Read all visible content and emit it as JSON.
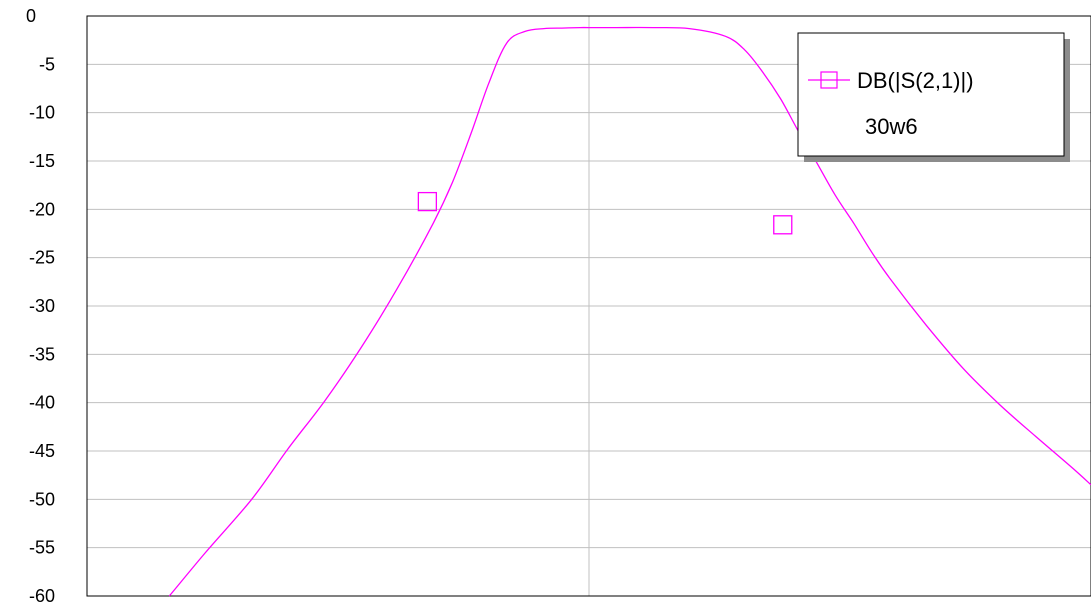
{
  "chart_data": {
    "type": "line",
    "title": "",
    "xlabel": "",
    "ylabel": "",
    "xlim": [
      0,
      100
    ],
    "ylim": [
      -60,
      0
    ],
    "yticks": [
      0,
      -5,
      -10,
      -15,
      -20,
      -25,
      -30,
      -35,
      -40,
      -45,
      -50,
      -55,
      -60
    ],
    "grid": true,
    "legend_position": "top-right",
    "series": [
      {
        "name": "DB(|S(2,1)|)",
        "sublabel": "30w6",
        "color": "#ff00ff",
        "x": [
          8.2,
          11.8,
          16.4,
          20.0,
          23.7,
          27.3,
          30.9,
          34.5,
          36.4,
          38.2,
          40.0,
          41.8,
          43.6,
          45.5,
          47.3,
          49.1,
          50.0,
          52.7,
          56.4,
          60.0,
          63.6,
          65.5,
          67.3,
          69.1,
          70.9,
          72.7,
          74.5,
          76.4,
          78.2,
          80.0,
          83.6,
          87.3,
          90.9,
          94.5,
          98.2,
          100.0
        ],
        "y": [
          -60.0,
          -55.5,
          -50.0,
          -44.8,
          -39.8,
          -34.3,
          -28.2,
          -21.4,
          -17.2,
          -12.3,
          -7.0,
          -2.8,
          -1.6,
          -1.3,
          -1.25,
          -1.2,
          -1.2,
          -1.2,
          -1.2,
          -1.3,
          -2.1,
          -3.5,
          -5.8,
          -8.6,
          -12.0,
          -15.2,
          -18.5,
          -21.5,
          -24.5,
          -27.2,
          -32.0,
          -36.5,
          -40.2,
          -43.5,
          -46.8,
          -48.5
        ],
        "markers": [
          {
            "x": 33.9,
            "y": -19.2
          },
          {
            "x": 69.3,
            "y": -21.6
          }
        ]
      }
    ]
  }
}
